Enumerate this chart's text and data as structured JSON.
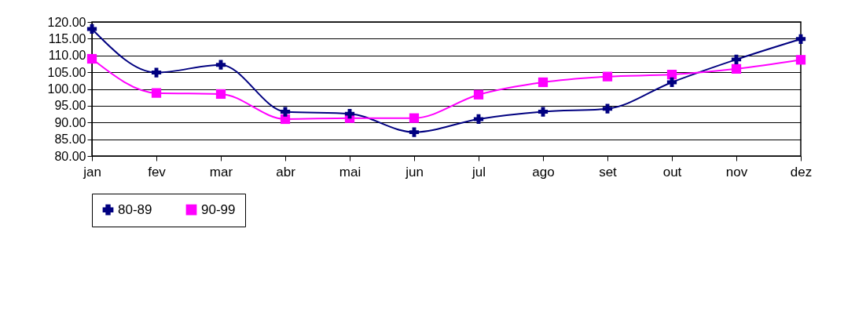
{
  "chart_data": {
    "type": "line",
    "categories": [
      "jan",
      "fev",
      "mar",
      "abr",
      "mai",
      "jun",
      "jul",
      "ago",
      "set",
      "out",
      "nov",
      "dez"
    ],
    "series": [
      {
        "name": "80-89",
        "color": "#000080",
        "marker": "cross",
        "values": [
          117.9,
          104.9,
          107.2,
          93.2,
          92.6,
          87.1,
          91.0,
          93.2,
          94.1,
          102.0,
          108.8,
          114.9
        ]
      },
      {
        "name": "90-99",
        "color": "#ff00ff",
        "marker": "square",
        "values": [
          109.0,
          98.8,
          98.5,
          91.0,
          91.3,
          91.3,
          98.3,
          102.0,
          103.7,
          104.3,
          106.0,
          108.7
        ]
      }
    ],
    "ylim": [
      80,
      120
    ],
    "yticks": [
      {
        "value": 80,
        "label": "80.00"
      },
      {
        "value": 85,
        "label": "85.00"
      },
      {
        "value": 90,
        "label": "90.00"
      },
      {
        "value": 95,
        "label": "95.00"
      },
      {
        "value": 100,
        "label": "100.00"
      },
      {
        "value": 105,
        "label": "105.00"
      },
      {
        "value": 110,
        "label": "110.00"
      },
      {
        "value": 115,
        "label": "115.00"
      },
      {
        "value": 120,
        "label": "120.00"
      }
    ],
    "grid": "y",
    "legend": "bottom",
    "line_style": "solid"
  }
}
